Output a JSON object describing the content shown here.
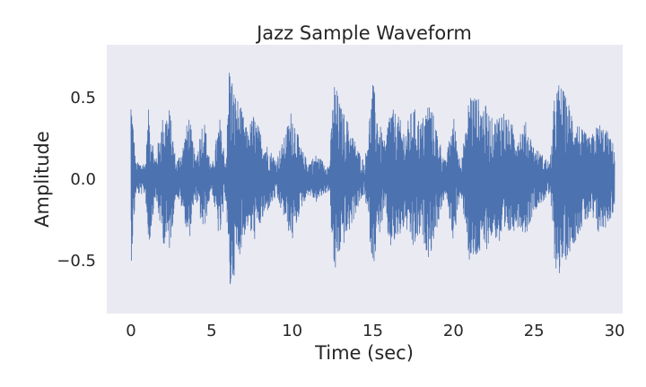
{
  "chart_data": {
    "type": "line",
    "title": "Jazz Sample Waveform",
    "xlabel": "Time (sec)",
    "ylabel": "Amplitude",
    "xlim": [
      -1.5,
      30.5
    ],
    "ylim": [
      -0.83,
      0.82
    ],
    "grid": false,
    "x_ticks": [
      0,
      5,
      10,
      15,
      20,
      25,
      30
    ],
    "x_tick_labels": [
      "0",
      "5",
      "10",
      "15",
      "20",
      "25",
      "30"
    ],
    "y_ticks": [
      -0.5,
      0.0,
      0.5
    ],
    "y_tick_labels": [
      "−0.5",
      "0.0",
      "0.5"
    ],
    "colors": {
      "background": "#eaeaf2",
      "line": "#4c72b0"
    },
    "series": [
      {
        "duration_sec": 30.0,
        "envelope_time": [
          0.0,
          0.3,
          0.9,
          1.1,
          1.5,
          2.0,
          2.4,
          2.8,
          3.2,
          3.6,
          4.0,
          4.5,
          5.0,
          5.5,
          5.9,
          6.1,
          6.4,
          6.8,
          7.2,
          7.6,
          8.0,
          8.5,
          9.0,
          9.5,
          10.0,
          10.5,
          11.0,
          11.5,
          12.0,
          12.3,
          12.6,
          13.0,
          13.5,
          14.0,
          14.5,
          15.0,
          15.4,
          15.8,
          16.0,
          16.5,
          17.0,
          17.5,
          18.0,
          18.5,
          19.0,
          19.5,
          20.0,
          20.4,
          20.8,
          21.0,
          21.5,
          22.0,
          22.5,
          23.0,
          23.5,
          24.0,
          24.5,
          25.0,
          25.5,
          26.0,
          26.3,
          26.6,
          27.0,
          27.5,
          28.0,
          28.5,
          29.0,
          29.5,
          30.0
        ],
        "envelope_max": [
          0.56,
          0.1,
          0.1,
          0.45,
          0.12,
          0.4,
          0.44,
          0.1,
          0.2,
          0.4,
          0.12,
          0.4,
          0.06,
          0.38,
          0.1,
          0.75,
          0.55,
          0.45,
          0.3,
          0.4,
          0.3,
          0.2,
          0.12,
          0.25,
          0.45,
          0.2,
          0.1,
          0.15,
          0.1,
          0.08,
          0.62,
          0.45,
          0.35,
          0.2,
          0.1,
          0.6,
          0.35,
          0.2,
          0.45,
          0.4,
          0.3,
          0.45,
          0.35,
          0.5,
          0.3,
          0.1,
          0.4,
          0.12,
          0.3,
          0.57,
          0.5,
          0.45,
          0.35,
          0.45,
          0.35,
          0.3,
          0.35,
          0.2,
          0.15,
          0.1,
          0.55,
          0.6,
          0.5,
          0.4,
          0.3,
          0.25,
          0.35,
          0.3,
          0.2
        ],
        "envelope_min": [
          -0.56,
          -0.1,
          -0.1,
          -0.45,
          -0.12,
          -0.4,
          -0.45,
          -0.1,
          -0.2,
          -0.4,
          -0.12,
          -0.35,
          -0.06,
          -0.4,
          -0.1,
          -0.76,
          -0.6,
          -0.45,
          -0.3,
          -0.4,
          -0.3,
          -0.2,
          -0.12,
          -0.25,
          -0.4,
          -0.2,
          -0.1,
          -0.15,
          -0.1,
          -0.08,
          -0.64,
          -0.45,
          -0.35,
          -0.2,
          -0.1,
          -0.55,
          -0.35,
          -0.2,
          -0.45,
          -0.4,
          -0.3,
          -0.45,
          -0.35,
          -0.5,
          -0.3,
          -0.1,
          -0.4,
          -0.12,
          -0.3,
          -0.57,
          -0.5,
          -0.45,
          -0.35,
          -0.45,
          -0.35,
          -0.3,
          -0.35,
          -0.2,
          -0.15,
          -0.1,
          -0.55,
          -0.6,
          -0.5,
          -0.4,
          -0.3,
          -0.25,
          -0.35,
          -0.3,
          -0.2
        ]
      }
    ]
  }
}
